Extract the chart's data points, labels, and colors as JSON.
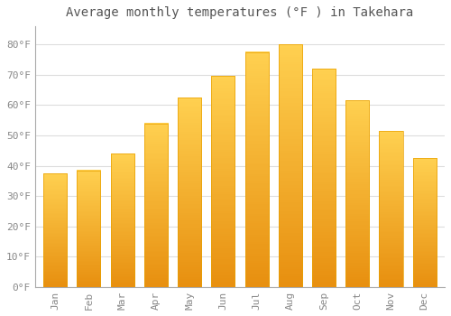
{
  "title": "Average monthly temperatures (°F ) in Takehara",
  "months": [
    "Jan",
    "Feb",
    "Mar",
    "Apr",
    "May",
    "Jun",
    "Jul",
    "Aug",
    "Sep",
    "Oct",
    "Nov",
    "Dec"
  ],
  "values": [
    37.5,
    38.5,
    44.0,
    54.0,
    62.5,
    69.5,
    77.5,
    80.0,
    72.0,
    61.5,
    51.5,
    42.5
  ],
  "bar_color": "#FFC020",
  "bar_edge_color": "#E8A000",
  "ylim": [
    0,
    86
  ],
  "yticks": [
    0,
    10,
    20,
    30,
    40,
    50,
    60,
    70,
    80
  ],
  "ytick_labels": [
    "0°F",
    "10°F",
    "20°F",
    "30°F",
    "40°F",
    "50°F",
    "60°F",
    "70°F",
    "80°F"
  ],
  "background_color": "#FFFFFF",
  "grid_color": "#DDDDDD",
  "title_fontsize": 10,
  "tick_fontsize": 8,
  "font_family": "monospace"
}
